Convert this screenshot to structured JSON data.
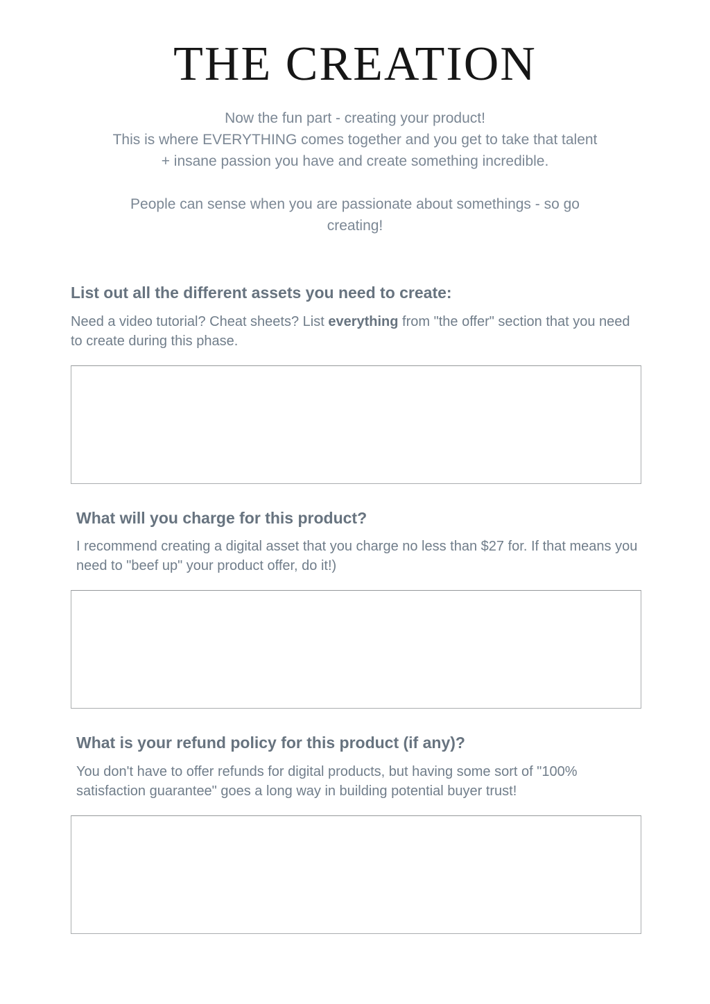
{
  "page": {
    "title": "THE CREATION"
  },
  "intro": {
    "para1_lines": [
      "Now the fun part - creating your product!",
      "This is where EVERYTHING comes together and you get to take that talent",
      "+ insane passion you have and create something incredible."
    ],
    "para2_lines": [
      "People can sense when you are passionate about somethings - so go",
      "creating!"
    ]
  },
  "sections": [
    {
      "heading": "List out all the different assets you need to create:",
      "body_before": "Need a video tutorial? Cheat sheets? List ",
      "body_bold": "everything",
      "body_after": " from \"the offer\" section that you need to create during this phase.",
      "answer_value": ""
    },
    {
      "heading": "What will you charge for this product?",
      "body_before": "I recommend creating a digital asset that you charge no less than $27 for. If that means you need to \"beef up\" your product offer, do it!)",
      "body_bold": "",
      "body_after": "",
      "answer_value": ""
    },
    {
      "heading": "What is your refund policy for this product (if any)?",
      "body_before": "You don't have to offer refunds for digital products, but having some sort of \"100% satisfaction guarantee\" goes a long way in building potential buyer trust!",
      "body_bold": "",
      "body_after": "",
      "answer_value": ""
    }
  ],
  "colors": {
    "title_text": "#161616",
    "heading_text": "#67737f",
    "body_text": "#707d8a",
    "intro_text": "#7b8794",
    "box_border": "#aaadaf",
    "page_background": "#ffffff"
  }
}
